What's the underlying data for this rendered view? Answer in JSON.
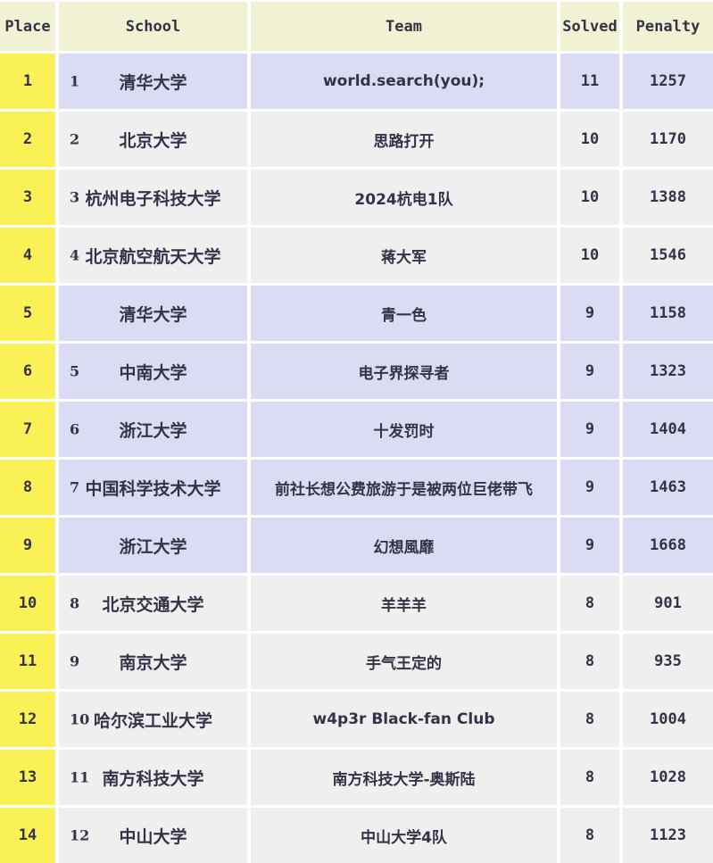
{
  "table": {
    "columns": [
      "Place",
      "School",
      "Team",
      "Solved",
      "Penalty"
    ],
    "rows": [
      {
        "place": "1",
        "school_rank": "1",
        "school": "清华大学",
        "team": "world.search(you);",
        "solved": "11",
        "penalty": "1257",
        "shade": "lavender"
      },
      {
        "place": "2",
        "school_rank": "2",
        "school": "北京大学",
        "team": "思路打开",
        "solved": "10",
        "penalty": "1170",
        "shade": "gray"
      },
      {
        "place": "3",
        "school_rank": "3",
        "school": "杭州电子科技大学",
        "team": "2024杭电1队",
        "solved": "10",
        "penalty": "1388",
        "shade": "gray"
      },
      {
        "place": "4",
        "school_rank": "4",
        "school": "北京航空航天大学",
        "team": "蒋大军",
        "solved": "10",
        "penalty": "1546",
        "shade": "gray"
      },
      {
        "place": "5",
        "school_rank": "",
        "school": "清华大学",
        "team": "青一色",
        "solved": "9",
        "penalty": "1158",
        "shade": "lavender"
      },
      {
        "place": "6",
        "school_rank": "5",
        "school": "中南大学",
        "team": "电子界探寻者",
        "solved": "9",
        "penalty": "1323",
        "shade": "lavender"
      },
      {
        "place": "7",
        "school_rank": "6",
        "school": "浙江大学",
        "team": "十发罚时",
        "solved": "9",
        "penalty": "1404",
        "shade": "lavender"
      },
      {
        "place": "8",
        "school_rank": "7",
        "school": "中国科学技术大学",
        "team": "前社长想公费旅游于是被两位巨佬带飞",
        "solved": "9",
        "penalty": "1463",
        "shade": "lavender"
      },
      {
        "place": "9",
        "school_rank": "",
        "school": "浙江大学",
        "team": "幻想風靡",
        "solved": "9",
        "penalty": "1668",
        "shade": "lavender"
      },
      {
        "place": "10",
        "school_rank": "8",
        "school": "北京交通大学",
        "team": "羊羊羊",
        "solved": "8",
        "penalty": "901",
        "shade": "gray"
      },
      {
        "place": "11",
        "school_rank": "9",
        "school": "南京大学",
        "team": "手气王定的",
        "solved": "8",
        "penalty": "935",
        "shade": "gray"
      },
      {
        "place": "12",
        "school_rank": "10",
        "school": "哈尔滨工业大学",
        "team": "w4p3r Black-fan Club",
        "solved": "8",
        "penalty": "1004",
        "shade": "gray"
      },
      {
        "place": "13",
        "school_rank": "11",
        "school": "南方科技大学",
        "team": "南方科技大学-奥斯陆",
        "solved": "8",
        "penalty": "1028",
        "shade": "gray"
      },
      {
        "place": "14",
        "school_rank": "12",
        "school": "中山大学",
        "team": "中山大学4队",
        "solved": "8",
        "penalty": "1123",
        "shade": "gray"
      }
    ]
  },
  "colors": {
    "header_bg": "#f1f1d3",
    "row_lavender": "#dbdbf4",
    "row_gray": "#efefef",
    "place_yellow": "#faf156",
    "gap_white": "#ffffff",
    "text": "#333347"
  }
}
